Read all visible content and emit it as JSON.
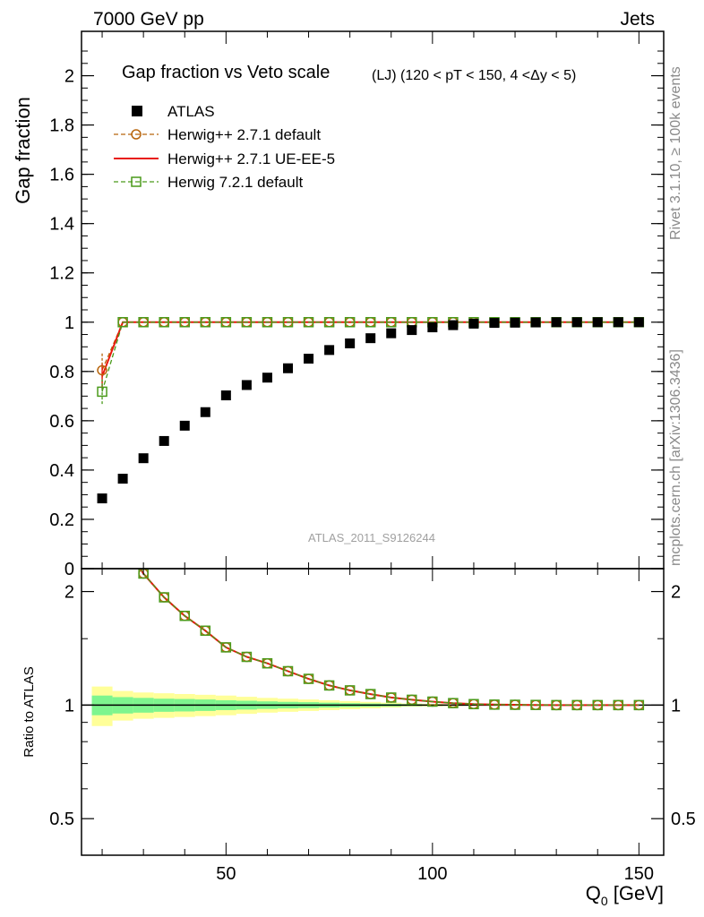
{
  "header": {
    "left": "7000 GeV pp",
    "right": "Jets"
  },
  "side_labels": {
    "rivet": "Rivet 3.1.10, ≥ 100k events",
    "mcplots": "mcplots.cern.ch [arXiv:1306.3436]"
  },
  "watermark": "ATLAS_2011_S9126244",
  "chart_data": {
    "type": "scatter",
    "title": "Gap fraction vs Veto scale",
    "subtitle": "(LJ) (120 < pT < 150, 4 <Δy < 5)",
    "xlabel": "Q",
    "xlabel_sub": "0",
    "xlabel_unit": " [GeV]",
    "ylabel": "Gap fraction",
    "ratio_ylabel": "Ratio to ATLAS",
    "xlim": [
      15,
      156
    ],
    "ylim": [
      0,
      2.18
    ],
    "ratio_ylim": [
      0.4,
      2.3
    ],
    "x_ticks": [
      50,
      100,
      150
    ],
    "y_ticks": [
      0,
      0.2,
      0.4,
      0.6,
      0.8,
      1,
      1.2,
      1.4,
      1.6,
      1.8,
      2
    ],
    "y_tick_labels": [
      "0",
      "0.2",
      "0.4",
      "0.6",
      "0.8",
      "1",
      "1.2",
      "1.4",
      "1.6",
      "1.8",
      "2"
    ],
    "ratio_ticks": [
      0.5,
      1,
      2
    ],
    "ratio_tick_labels": [
      "0.5",
      "1",
      "2"
    ],
    "x": [
      20,
      25,
      30,
      35,
      40,
      45,
      50,
      55,
      60,
      65,
      70,
      75,
      80,
      85,
      90,
      95,
      100,
      105,
      110,
      115,
      120,
      125,
      130,
      135,
      140,
      145,
      150
    ],
    "series": [
      {
        "name": "ATLAS",
        "color": "#000000",
        "marker": "square-filled",
        "values": [
          0.285,
          0.365,
          0.448,
          0.518,
          0.58,
          0.635,
          0.703,
          0.745,
          0.775,
          0.813,
          0.852,
          0.887,
          0.914,
          0.935,
          0.955,
          0.968,
          0.979,
          0.988,
          0.994,
          0.997,
          0.998,
          0.999,
          1.0,
          1.0,
          1.0,
          1.0,
          1.0
        ]
      },
      {
        "name": "Herwig++ 2.7.1 default",
        "color": "#b8650c",
        "marker": "circle-open",
        "dash": true,
        "values": [
          0.805,
          1.0,
          1.0,
          1.0,
          1.0,
          1.0,
          1.0,
          1.0,
          1.0,
          1.0,
          1.0,
          1.0,
          1.0,
          1.0,
          1.0,
          1.0,
          1.0,
          1.0,
          1.0,
          1.0,
          1.0,
          1.0,
          1.0,
          1.0,
          1.0,
          1.0,
          1.0
        ],
        "errors": [
          0.07,
          0,
          0,
          0,
          0,
          0,
          0,
          0,
          0,
          0,
          0,
          0,
          0,
          0,
          0,
          0,
          0,
          0,
          0,
          0,
          0,
          0,
          0,
          0,
          0,
          0,
          0
        ]
      },
      {
        "name": "Herwig++ 2.7.1 UE-EE-5",
        "color": "#e8180c",
        "marker": "none",
        "values": [
          0.78,
          1.0,
          1.0,
          1.0,
          1.0,
          1.0,
          1.0,
          1.0,
          1.0,
          1.0,
          1.0,
          1.0,
          1.0,
          1.0,
          1.0,
          1.0,
          1.0,
          1.0,
          1.0,
          1.0,
          1.0,
          1.0,
          1.0,
          1.0,
          1.0,
          1.0,
          1.0
        ],
        "errors": [
          0.05,
          0,
          0,
          0,
          0,
          0,
          0,
          0,
          0,
          0,
          0,
          0,
          0,
          0,
          0,
          0,
          0,
          0,
          0,
          0,
          0,
          0,
          0,
          0,
          0,
          0,
          0
        ]
      },
      {
        "name": "Herwig 7.2.1 default",
        "color": "#4a9a1a",
        "marker": "square-open",
        "dash": true,
        "values": [
          0.718,
          1.0,
          1.0,
          1.0,
          1.0,
          1.0,
          1.0,
          1.0,
          1.0,
          1.0,
          1.0,
          1.0,
          1.0,
          1.0,
          1.0,
          1.0,
          1.0,
          1.0,
          1.0,
          1.0,
          1.0,
          1.0,
          1.0,
          1.0,
          1.0,
          1.0,
          1.0
        ],
        "errors": [
          0.05,
          0,
          0,
          0,
          0,
          0,
          0,
          0,
          0,
          0,
          0,
          0,
          0,
          0,
          0,
          0,
          0,
          0,
          0,
          0,
          0,
          0,
          0,
          0,
          0,
          0,
          0
        ]
      }
    ],
    "ratio_band": {
      "x_edges": [
        17.5,
        22.5,
        27.5,
        32.5,
        37.5,
        42.5,
        47.5,
        52.5,
        57.5,
        62.5,
        67.5,
        72.5,
        77.5,
        82.5,
        87.5,
        92.5,
        97.5,
        102.5,
        107.5,
        112.5,
        117.5,
        122.5,
        127.5,
        132.5,
        137.5,
        142.5,
        147.5,
        152.5
      ],
      "inner": [
        0.06,
        0.05,
        0.045,
        0.04,
        0.038,
        0.035,
        0.03,
        0.027,
        0.023,
        0.02,
        0.018,
        0.015,
        0.012,
        0.01,
        0.008,
        0.006,
        0.004,
        0.003,
        0.002,
        0.0015,
        0.001,
        0.001,
        0.001,
        0.001,
        0.001,
        0.001,
        0.001
      ],
      "outer": [
        0.12,
        0.09,
        0.08,
        0.075,
        0.07,
        0.065,
        0.06,
        0.052,
        0.045,
        0.04,
        0.035,
        0.03,
        0.025,
        0.02,
        0.015,
        0.01,
        0.008,
        0.006,
        0.004,
        0.003,
        0.002,
        0.002,
        0.002,
        0.002,
        0.002,
        0.002,
        0.002
      ],
      "inner_color": "#7ef58e",
      "outer_color": "#ffff99"
    },
    "legend_position": "top-left"
  }
}
